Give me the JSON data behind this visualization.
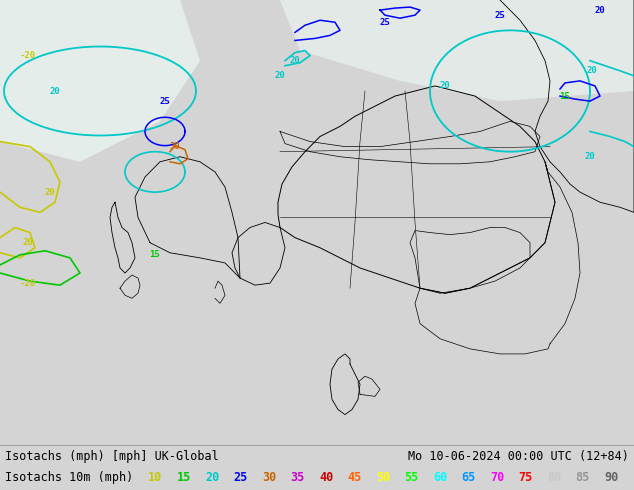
{
  "title_left": "Isotachs (mph) [mph] UK-Global",
  "title_right": "Mo 10-06-2024 00:00 UTC (12+84)",
  "legend_label": "Isotachs 10m (mph)",
  "legend_values": [
    "10",
    "15",
    "20",
    "25",
    "30",
    "35",
    "40",
    "45",
    "50",
    "55",
    "60",
    "65",
    "70",
    "75",
    "80",
    "85",
    "90"
  ],
  "legend_colors": [
    "#c8c800",
    "#00c800",
    "#00c8c8",
    "#0000ff",
    "#c86400",
    "#c800c8",
    "#c80000",
    "#ff6400",
    "#ffff00",
    "#00ff00",
    "#00ffff",
    "#0096ff",
    "#ff00ff",
    "#ff0000",
    "#c8c8c8",
    "#969696",
    "#646464"
  ],
  "land_color": "#c8ff96",
  "sea_color": "#f0fff0",
  "bottom_bar_color": "#d4d4d4",
  "border_color": "#000000",
  "contour_colors": {
    "10": "#c8c800",
    "15": "#00c800",
    "20": "#00c8c8",
    "25": "#0000ff",
    "30": "#c86400"
  },
  "text_color": "#000000",
  "font_size": 8.5,
  "fig_width": 6.34,
  "fig_height": 4.9,
  "dpi": 100
}
